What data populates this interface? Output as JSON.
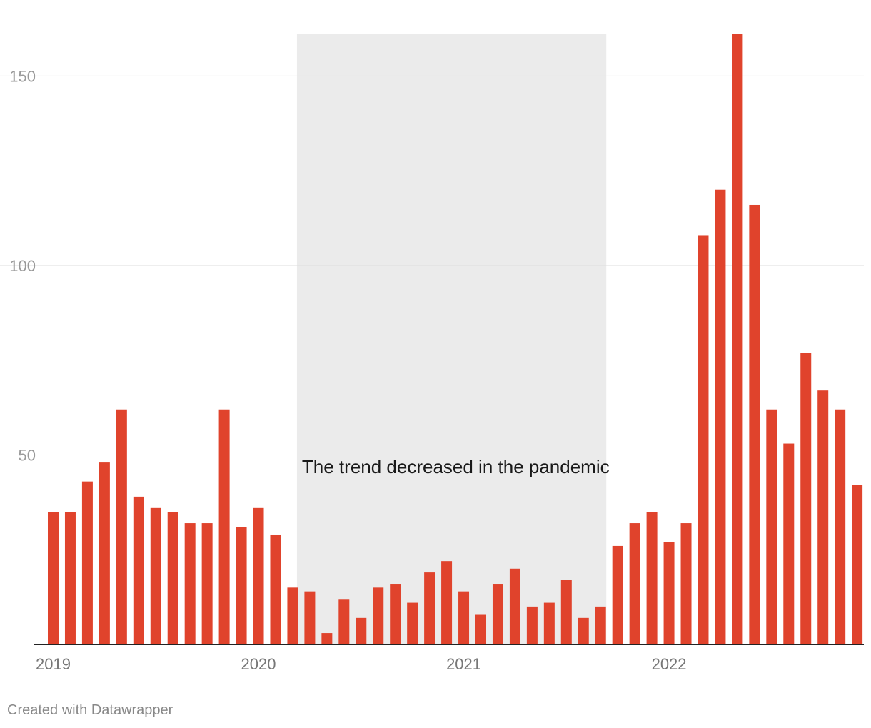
{
  "chart_data": {
    "type": "bar",
    "title": "",
    "xlabel": "",
    "ylabel": "",
    "ylim": [
      0,
      161
    ],
    "y_ticks": [
      50,
      100,
      150
    ],
    "x_tick_labels": [
      "2019",
      "2020",
      "2021",
      "2022"
    ],
    "grid": true,
    "bar_color": "#e0432c",
    "highlight_color": "#ebebeb",
    "highlight_range": [
      "2020-04",
      "2021-09"
    ],
    "annotation": "The trend decreased in the pandemic",
    "categories": [
      "2019-01",
      "2019-02",
      "2019-03",
      "2019-04",
      "2019-05",
      "2019-06",
      "2019-07",
      "2019-08",
      "2019-09",
      "2019-10",
      "2019-11",
      "2019-12",
      "2020-01",
      "2020-02",
      "2020-03",
      "2020-04",
      "2020-05",
      "2020-06",
      "2020-07",
      "2020-08",
      "2020-09",
      "2020-10",
      "2020-11",
      "2020-12",
      "2021-01",
      "2021-02",
      "2021-03",
      "2021-04",
      "2021-05",
      "2021-06",
      "2021-07",
      "2021-08",
      "2021-09",
      "2021-10",
      "2021-11",
      "2021-12",
      "2022-01",
      "2022-02",
      "2022-03",
      "2022-04",
      "2022-05",
      "2022-06",
      "2022-07",
      "2022-08",
      "2022-09",
      "2022-10",
      "2022-11",
      "2022-12"
    ],
    "values": [
      35,
      35,
      43,
      48,
      62,
      39,
      36,
      35,
      32,
      32,
      62,
      31,
      36,
      29,
      15,
      14,
      3,
      12,
      7,
      15,
      16,
      11,
      19,
      22,
      14,
      8,
      16,
      20,
      10,
      11,
      17,
      7,
      10,
      26,
      32,
      35,
      27,
      32,
      108,
      120,
      161,
      116,
      62,
      53,
      77,
      67,
      62,
      42
    ]
  },
  "footer": {
    "credit": "Created with Datawrapper"
  }
}
